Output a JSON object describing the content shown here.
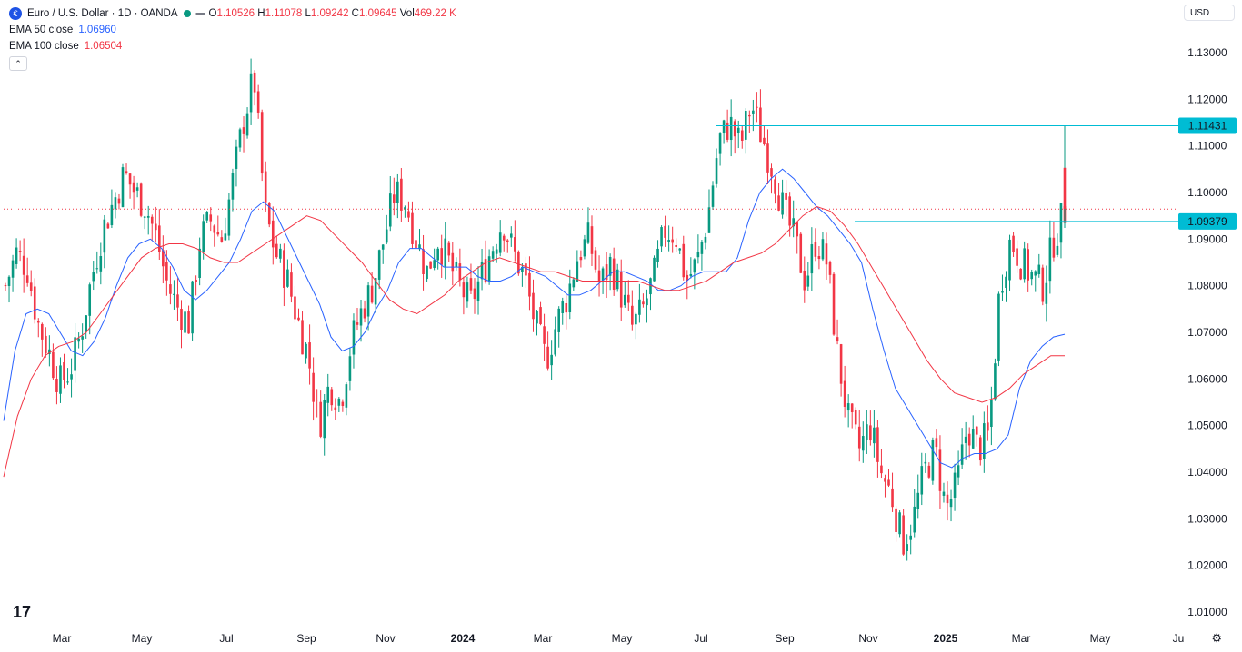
{
  "legend": {
    "symbol_icon": "euro-usd-flag-icon",
    "title": "Euro / U.S. Dollar · 1D · OANDA",
    "o_label": "O",
    "o_value": "1.10526",
    "h_label": "H",
    "h_value": "1.11078",
    "l_label": "L",
    "l_value": "1.09242",
    "c_label": "C",
    "c_value": "1.09645",
    "vol_label": "Vol",
    "vol_value": "469.22 K",
    "ema50_label": "EMA 50 close",
    "ema50_value": "1.06960",
    "ema100_label": "EMA 100 close",
    "ema100_value": "1.06504"
  },
  "currency": "USD",
  "colors": {
    "up": "#089981",
    "down": "#f23645",
    "ema50": "#2962ff",
    "ema100": "#f23645",
    "level": "#00bcd4"
  },
  "chart_data": {
    "type": "candlestick",
    "price_ticks": [
      "1.13000",
      "1.12000",
      "1.11000",
      "1.10000",
      "1.09000",
      "1.08000",
      "1.07000",
      "1.06000",
      "1.05000",
      "1.04000",
      "1.03000",
      "1.02000",
      "1.01000"
    ],
    "ylim": [
      1.01,
      1.13
    ],
    "x_ticks": [
      "Mar",
      "May",
      "Jul",
      "Sep",
      "Nov",
      "2024",
      "Mar",
      "May",
      "Jul",
      "Sep",
      "Nov",
      "2025",
      "Mar",
      "May",
      "Ju"
    ],
    "level_labels": [
      {
        "value": 1.11431,
        "label": "1.11431"
      },
      {
        "value": 1.09379,
        "label": "1.09379"
      }
    ],
    "current_price_line": 1.09645,
    "close_path": [
      [
        1.08,
        1.087,
        1.084,
        1.072,
        1.066,
        1.059,
        1.062,
        1.07,
        1.082,
        1.092,
        1.098,
        1.104,
        1.1,
        1.097,
        1.09,
        1.08,
        1.075,
        1.072,
        1.09,
        1.094,
        1.09,
        1.102,
        1.115,
        1.125,
        1.096,
        1.087,
        1.082,
        1.073,
        1.065,
        1.05,
        1.059,
        1.055,
        1.068,
        1.075,
        1.08,
        1.09,
        1.1,
        1.098,
        1.09,
        1.083,
        1.09,
        1.085,
        1.08,
        1.076,
        1.082,
        1.088,
        1.094,
        1.087,
        1.082,
        1.072,
        1.064,
        1.072,
        1.078,
        1.087,
        1.09,
        1.08,
        1.085,
        1.078,
        1.071,
        1.075,
        1.082,
        1.092,
        1.091,
        1.081,
        1.085,
        1.095,
        1.111,
        1.115,
        1.11,
        1.119,
        1.112,
        1.105,
        1.096,
        1.09,
        1.081,
        1.09,
        1.085,
        1.065,
        1.051,
        1.045,
        1.05,
        1.04,
        1.035,
        1.025,
        1.03,
        1.04,
        1.045,
        1.032,
        1.037,
        1.05,
        1.045,
        1.048,
        1.08,
        1.09,
        1.085,
        1.082,
        1.08,
        1.09,
        1.096
      ]
    ],
    "ema50_path": [
      1.051,
      1.066,
      1.074,
      1.075,
      1.074,
      1.07,
      1.066,
      1.065,
      1.068,
      1.073,
      1.08,
      1.086,
      1.089,
      1.09,
      1.088,
      1.084,
      1.079,
      1.077,
      1.079,
      1.082,
      1.085,
      1.09,
      1.096,
      1.098,
      1.096,
      1.091,
      1.086,
      1.081,
      1.076,
      1.069,
      1.066,
      1.067,
      1.07,
      1.075,
      1.079,
      1.085,
      1.088,
      1.088,
      1.086,
      1.084,
      1.084,
      1.084,
      1.082,
      1.081,
      1.081,
      1.082,
      1.084,
      1.083,
      1.082,
      1.08,
      1.078,
      1.078,
      1.079,
      1.081,
      1.083,
      1.083,
      1.082,
      1.081,
      1.079,
      1.079,
      1.08,
      1.082,
      1.083,
      1.083,
      1.083,
      1.086,
      1.094,
      1.1,
      1.103,
      1.105,
      1.103,
      1.1,
      1.097,
      1.095,
      1.092,
      1.089,
      1.085,
      1.075,
      1.066,
      1.058,
      1.054,
      1.05,
      1.046,
      1.042,
      1.041,
      1.043,
      1.044,
      1.044,
      1.045,
      1.048,
      1.058,
      1.064,
      1.067,
      1.069,
      1.0696
    ],
    "ema100_path": [
      1.039,
      1.052,
      1.06,
      1.065,
      1.067,
      1.068,
      1.07,
      1.074,
      1.078,
      1.082,
      1.086,
      1.088,
      1.089,
      1.089,
      1.088,
      1.086,
      1.085,
      1.085,
      1.087,
      1.089,
      1.091,
      1.093,
      1.095,
      1.094,
      1.091,
      1.088,
      1.085,
      1.081,
      1.077,
      1.075,
      1.074,
      1.076,
      1.078,
      1.081,
      1.083,
      1.085,
      1.086,
      1.085,
      1.084,
      1.083,
      1.083,
      1.082,
      1.081,
      1.081,
      1.081,
      1.081,
      1.081,
      1.08,
      1.079,
      1.079,
      1.08,
      1.081,
      1.083,
      1.085,
      1.086,
      1.087,
      1.089,
      1.092,
      1.095,
      1.097,
      1.096,
      1.093,
      1.089,
      1.084,
      1.079,
      1.074,
      1.069,
      1.064,
      1.06,
      1.057,
      1.056,
      1.055,
      1.056,
      1.058,
      1.061,
      1.063,
      1.065,
      1.065
    ]
  }
}
